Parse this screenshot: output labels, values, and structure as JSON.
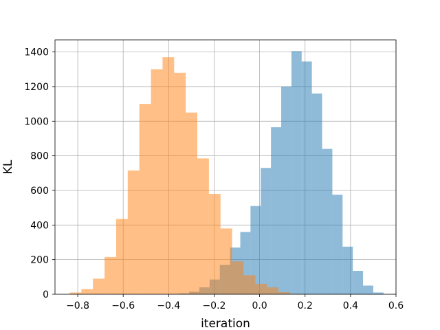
{
  "chart_data": {
    "type": "bar",
    "subtype": "overlapping-histogram",
    "title": "",
    "xlabel": "iteration",
    "ylabel": "KL",
    "xlim": [
      -0.9,
      0.6
    ],
    "ylim": [
      0,
      1470
    ],
    "xticks": [
      -0.8,
      -0.6,
      -0.4,
      -0.2,
      0.0,
      0.2,
      0.4,
      0.6
    ],
    "xtick_labels": [
      "−0.8",
      "−0.6",
      "−0.4",
      "−0.2",
      "0.0",
      "0.2",
      "0.4",
      "0.6"
    ],
    "yticks": [
      0,
      200,
      400,
      600,
      800,
      1000,
      1200,
      1400
    ],
    "ytick_labels": [
      "0",
      "200",
      "400",
      "600",
      "800",
      "1000",
      "1200",
      "1400"
    ],
    "grid": true,
    "series": [
      {
        "color": "#1f77b4",
        "alpha": 0.5,
        "bin_edges": [
          -0.4,
          -0.355,
          -0.31,
          -0.265,
          -0.22,
          -0.175,
          -0.13,
          -0.085,
          -0.04,
          0.005,
          0.05,
          0.095,
          0.14,
          0.185,
          0.23,
          0.275,
          0.32,
          0.365,
          0.41,
          0.455,
          0.5,
          0.545
        ],
        "counts": [
          2,
          5,
          15,
          40,
          85,
          170,
          270,
          360,
          510,
          730,
          965,
          1200,
          1405,
          1345,
          1160,
          840,
          575,
          275,
          135,
          50,
          10
        ]
      },
      {
        "color": "#ff7f0e",
        "alpha": 0.5,
        "bin_edges": [
          -0.835,
          -0.784,
          -0.733,
          -0.682,
          -0.631,
          -0.58,
          -0.529,
          -0.478,
          -0.427,
          -0.376,
          -0.325,
          -0.274,
          -0.223,
          -0.172,
          -0.121,
          -0.07,
          -0.019,
          0.032,
          0.083,
          0.134,
          0.185
        ],
        "counts": [
          10,
          30,
          90,
          215,
          435,
          715,
          1100,
          1300,
          1370,
          1280,
          1050,
          785,
          580,
          380,
          190,
          110,
          60,
          40,
          12,
          3
        ]
      }
    ]
  }
}
